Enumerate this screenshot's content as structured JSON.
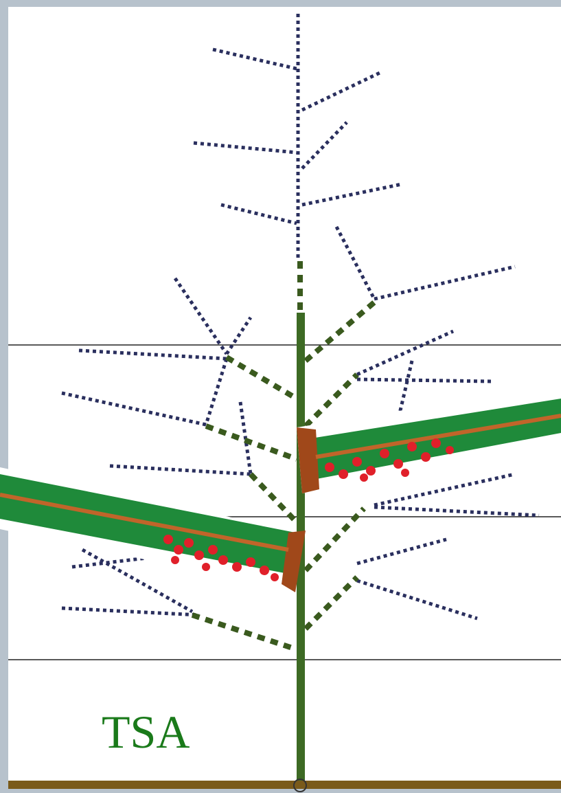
{
  "label": "TSA"
}
